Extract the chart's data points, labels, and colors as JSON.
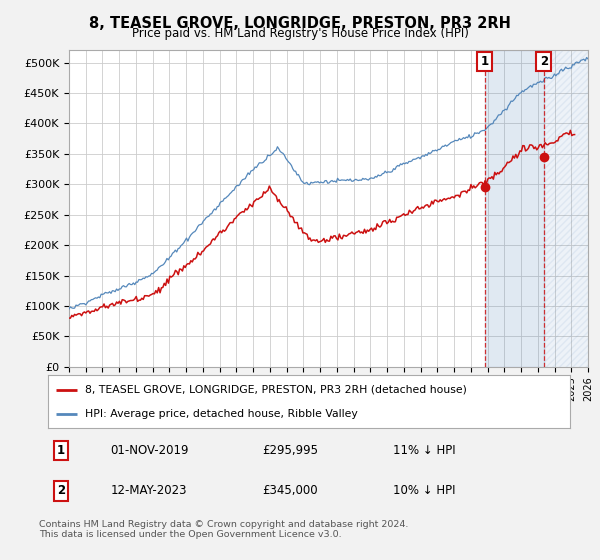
{
  "title": "8, TEASEL GROVE, LONGRIDGE, PRESTON, PR3 2RH",
  "subtitle": "Price paid vs. HM Land Registry's House Price Index (HPI)",
  "ylim": [
    0,
    520000
  ],
  "yticks": [
    0,
    50000,
    100000,
    150000,
    200000,
    250000,
    300000,
    350000,
    400000,
    450000,
    500000
  ],
  "ytick_labels": [
    "£0",
    "£50K",
    "£100K",
    "£150K",
    "£200K",
    "£250K",
    "£300K",
    "£350K",
    "£400K",
    "£450K",
    "£500K"
  ],
  "hpi_color": "#5588bb",
  "price_color": "#cc1111",
  "background_color": "#f2f2f2",
  "plot_bg_color": "#ffffff",
  "grid_color": "#cccccc",
  "sale1_x": 2019.833,
  "sale1_y": 295995,
  "sale2_x": 2023.36,
  "sale2_y": 345000,
  "legend_label_price": "8, TEASEL GROVE, LONGRIDGE, PRESTON, PR3 2RH (detached house)",
  "legend_label_hpi": "HPI: Average price, detached house, Ribble Valley",
  "table_row1": [
    "1",
    "01-NOV-2019",
    "£295,995",
    "11% ↓ HPI"
  ],
  "table_row2": [
    "2",
    "12-MAY-2023",
    "£345,000",
    "10% ↓ HPI"
  ],
  "footnote": "Contains HM Land Registry data © Crown copyright and database right 2024.\nThis data is licensed under the Open Government Licence v3.0.",
  "xmin": 1995,
  "xmax": 2026
}
